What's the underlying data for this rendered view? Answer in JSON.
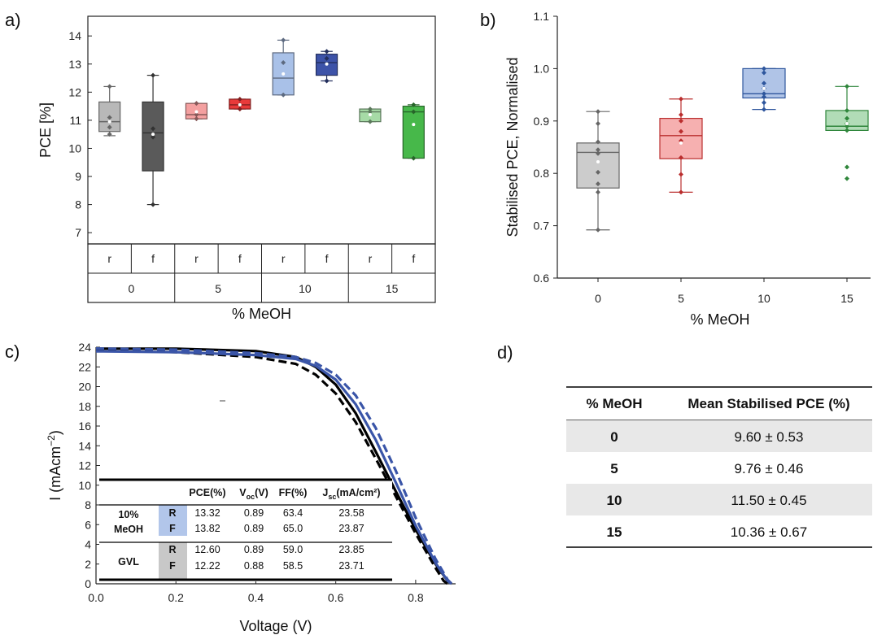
{
  "chart_data": [
    {
      "panel": "a)",
      "type": "box",
      "ylabel": "PCE [%]",
      "xlabel": "% MeOH",
      "ylim": [
        6.6,
        14.7
      ],
      "yticks": [
        7,
        8,
        9,
        10,
        11,
        12,
        13,
        14
      ],
      "groups": [
        "0",
        "5",
        "10",
        "15"
      ],
      "subgroups": [
        "r",
        "f"
      ],
      "boxes": [
        {
          "group": "0",
          "sub": "r",
          "color": "#b8b8b8",
          "q1": 10.6,
          "median": 10.95,
          "q3": 11.65,
          "min": 10.45,
          "max": 12.2,
          "mean": 10.95,
          "points": [
            12.2,
            11.1,
            10.75,
            10.5
          ]
        },
        {
          "group": "0",
          "sub": "f",
          "color": "#5a5a5a",
          "q1": 9.2,
          "median": 10.55,
          "q3": 11.65,
          "min": 8.0,
          "max": 12.6,
          "mean": 10.5,
          "points": [
            12.6,
            10.7,
            10.4,
            8.0
          ]
        },
        {
          "group": "5",
          "sub": "r",
          "color": "#f4a0a0",
          "q1": 11.05,
          "median": 11.2,
          "q3": 11.6,
          "min": 11.05,
          "max": 11.6,
          "mean": 11.3,
          "points": [
            11.6,
            11.2,
            11.05
          ]
        },
        {
          "group": "5",
          "sub": "f",
          "color": "#e83a3a",
          "q1": 11.4,
          "median": 11.55,
          "q3": 11.75,
          "min": 11.4,
          "max": 11.75,
          "mean": 11.55,
          "points": [
            11.75,
            11.55,
            11.4
          ]
        },
        {
          "group": "10",
          "sub": "r",
          "color": "#a9c1e8",
          "q1": 11.9,
          "median": 12.5,
          "q3": 13.4,
          "min": 11.9,
          "max": 13.85,
          "mean": 12.65,
          "points": [
            13.85,
            13.05,
            11.9
          ]
        },
        {
          "group": "10",
          "sub": "f",
          "color": "#3d53a8",
          "q1": 12.6,
          "median": 13.05,
          "q3": 13.35,
          "min": 12.4,
          "max": 13.45,
          "mean": 13.0,
          "points": [
            13.45,
            13.2,
            12.4
          ]
        },
        {
          "group": "15",
          "sub": "r",
          "color": "#a6dba6",
          "q1": 10.95,
          "median": 11.3,
          "q3": 11.4,
          "min": 10.95,
          "max": 11.4,
          "mean": 11.2,
          "points": [
            11.4,
            11.3,
            10.95
          ]
        },
        {
          "group": "15",
          "sub": "f",
          "color": "#47b84a",
          "q1": 9.65,
          "median": 11.3,
          "q3": 11.5,
          "min": 9.65,
          "max": 11.55,
          "mean": 10.85,
          "points": [
            11.55,
            11.3,
            9.65
          ]
        }
      ]
    },
    {
      "panel": "b)",
      "type": "box",
      "ylabel": "Stabilised PCE, Normalised",
      "xlabel": "% MeOH",
      "ylim": [
        0.6,
        1.1
      ],
      "yticks": [
        0.6,
        0.7,
        0.8,
        0.9,
        1.0,
        1.1
      ],
      "ytick_labels": [
        "0.6",
        "0.7",
        "0.8",
        "0.9",
        "1.0",
        "1.1"
      ],
      "categories": [
        "0",
        "5",
        "10",
        "15"
      ],
      "boxes": [
        {
          "category": "0",
          "color": "#808080",
          "q1": 0.772,
          "median": 0.84,
          "q3": 0.858,
          "min": 0.692,
          "max": 0.918,
          "mean": 0.822,
          "points": [
            0.918,
            0.895,
            0.86,
            0.845,
            0.838,
            0.802,
            0.78,
            0.764,
            0.692
          ]
        },
        {
          "category": "5",
          "color": "#e8393a",
          "q1": 0.828,
          "median": 0.872,
          "q3": 0.905,
          "min": 0.764,
          "max": 0.942,
          "mean": 0.858,
          "points": [
            0.942,
            0.912,
            0.9,
            0.88,
            0.862,
            0.83,
            0.798,
            0.764
          ]
        },
        {
          "category": "10",
          "color": "#3a6bc4",
          "q1": 0.944,
          "median": 0.952,
          "q3": 1.0,
          "min": 0.922,
          "max": 1.0,
          "mean": 0.962,
          "points": [
            1.0,
            0.992,
            0.972,
            0.962,
            0.952,
            0.946,
            0.935,
            0.922
          ]
        },
        {
          "category": "15",
          "color": "#3ba84a",
          "q1": 0.882,
          "median": 0.89,
          "q3": 0.92,
          "min": 0.882,
          "max": 0.966,
          "mean": 0.895,
          "points": [
            0.966,
            0.92,
            0.905,
            0.895,
            0.89,
            0.882,
            0.812,
            0.79
          ]
        }
      ]
    },
    {
      "panel": "c)",
      "type": "line",
      "xlabel": "Voltage (V)",
      "ylabel": "I (mAcm",
      "ylabel_sup": "−2",
      "ylabel_close": ")",
      "xlim": [
        0.0,
        0.9
      ],
      "ylim": [
        0,
        24
      ],
      "xticks": [
        0.0,
        0.2,
        0.4,
        0.6,
        0.8
      ],
      "xtick_labels": [
        "0.0",
        "0.2",
        "0.4",
        "0.6",
        "0.8"
      ],
      "yticks": [
        0,
        2,
        4,
        6,
        8,
        10,
        12,
        14,
        16,
        18,
        20,
        22,
        24
      ],
      "series": [
        {
          "color": "#000000",
          "dash": "solid",
          "x": [
            0.0,
            0.2,
            0.4,
            0.5,
            0.55,
            0.6,
            0.65,
            0.7,
            0.75,
            0.8,
            0.85,
            0.88,
            0.89
          ],
          "y": [
            23.85,
            23.85,
            23.6,
            23.0,
            22.0,
            20.2,
            17.3,
            13.4,
            9.4,
            5.5,
            2.0,
            0.3,
            0
          ]
        },
        {
          "color": "#000000",
          "dash": "dashed",
          "x": [
            0.0,
            0.2,
            0.4,
            0.5,
            0.55,
            0.6,
            0.65,
            0.7,
            0.75,
            0.8,
            0.85,
            0.87,
            0.88
          ],
          "y": [
            23.71,
            23.5,
            23.0,
            22.3,
            21.2,
            19.3,
            16.4,
            12.7,
            8.9,
            5.1,
            1.6,
            0.3,
            0
          ]
        },
        {
          "color": "#3a55a8",
          "dash": "solid",
          "x": [
            0.0,
            0.2,
            0.4,
            0.5,
            0.55,
            0.6,
            0.65,
            0.7,
            0.75,
            0.8,
            0.85,
            0.88,
            0.89
          ],
          "y": [
            23.58,
            23.5,
            23.2,
            22.8,
            22.1,
            20.7,
            18.2,
            14.6,
            10.3,
            5.9,
            2.1,
            0.3,
            0
          ]
        },
        {
          "color": "#3a55a8",
          "dash": "dashed",
          "x": [
            0.0,
            0.2,
            0.4,
            0.5,
            0.55,
            0.6,
            0.65,
            0.7,
            0.75,
            0.8,
            0.85,
            0.88,
            0.89
          ],
          "y": [
            23.87,
            23.75,
            23.4,
            23.0,
            22.4,
            21.2,
            19.1,
            15.8,
            11.5,
            6.7,
            2.5,
            0.4,
            0
          ]
        }
      ],
      "inset_table": {
        "headers": [
          "PCE(%)",
          "V",
          "FF(%)",
          "J"
        ],
        "header_subs": [
          "",
          "oc",
          "",
          "sc"
        ],
        "header_tails": [
          "",
          "(V)",
          "",
          "(mA/cm²)"
        ],
        "rows": [
          {
            "group_line1": "10%",
            "group_line2": "MeOH",
            "scan": "R",
            "pce": "13.32",
            "voc": "0.89",
            "ff": "63.4",
            "jsc": "23.58"
          },
          {
            "group_line1": "",
            "group_line2": "",
            "scan": "F",
            "pce": "13.82",
            "voc": "0.89",
            "ff": "65.0",
            "jsc": "23.87"
          },
          {
            "group_line1": "GVL",
            "group_line2": "",
            "scan": "R",
            "pce": "12.60",
            "voc": "0.89",
            "ff": "59.0",
            "jsc": "23.85"
          },
          {
            "group_line1": "",
            "group_line2": "",
            "scan": "F",
            "pce": "12.22",
            "voc": "0.88",
            "ff": "58.5",
            "jsc": "23.71"
          }
        ]
      }
    },
    {
      "panel": "d)",
      "type": "table",
      "headers": [
        "% MeOH",
        "Mean Stabilised PCE (%)"
      ],
      "rows": [
        [
          "0",
          "9.60 ± 0.53"
        ],
        [
          "5",
          "9.76 ± 0.46"
        ],
        [
          "10",
          "11.50 ± 0.45"
        ],
        [
          "15",
          "10.36 ± 0.67"
        ]
      ]
    }
  ]
}
